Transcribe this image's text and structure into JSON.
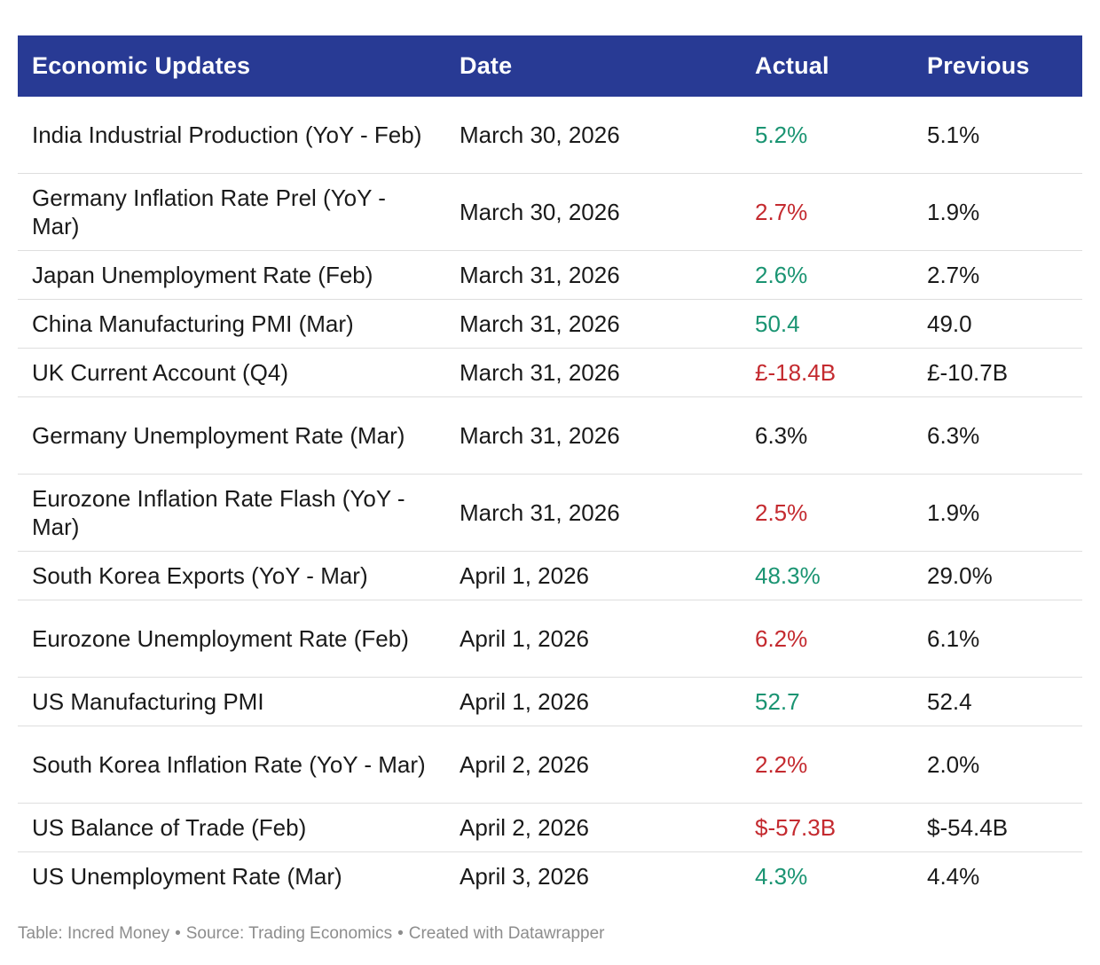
{
  "chart_data": {
    "type": "table",
    "headers": {
      "event": "Economic Updates",
      "date": "Date",
      "actual": "Actual",
      "previous": "Previous"
    },
    "rows": [
      {
        "event": "India Industrial Production (YoY - Feb)",
        "date": "March 30, 2026",
        "actual": "5.2%",
        "actual_trend": "positive",
        "previous": "5.1%"
      },
      {
        "event": "Germany Inflation Rate Prel (YoY - Mar)",
        "date": "March 30, 2026",
        "actual": "2.7%",
        "actual_trend": "negative",
        "previous": "1.9%"
      },
      {
        "event": "Japan Unemployment Rate (Feb)",
        "date": "March 31, 2026",
        "actual": "2.6%",
        "actual_trend": "positive",
        "previous": "2.7%"
      },
      {
        "event": "China Manufacturing PMI (Mar)",
        "date": "March 31, 2026",
        "actual": "50.4",
        "actual_trend": "positive",
        "previous": "49.0"
      },
      {
        "event": "UK Current Account (Q4)",
        "date": "March 31, 2026",
        "actual": "£-18.4B",
        "actual_trend": "negative",
        "previous": "£-10.7B"
      },
      {
        "event": "Germany Unemployment Rate (Mar)",
        "date": "March 31, 2026",
        "actual": "6.3%",
        "actual_trend": "neutral",
        "previous": "6.3%"
      },
      {
        "event": "Eurozone Inflation Rate Flash (YoY - Mar)",
        "date": "March 31, 2026",
        "actual": "2.5%",
        "actual_trend": "negative",
        "previous": "1.9%"
      },
      {
        "event": "South Korea Exports (YoY - Mar)",
        "date": "April 1, 2026",
        "actual": "48.3%",
        "actual_trend": "positive",
        "previous": "29.0%"
      },
      {
        "event": "Eurozone Unemployment Rate (Feb)",
        "date": "April 1, 2026",
        "actual": "6.2%",
        "actual_trend": "negative",
        "previous": "6.1%"
      },
      {
        "event": "US Manufacturing PMI",
        "date": "April 1, 2026",
        "actual": "52.7",
        "actual_trend": "positive",
        "previous": "52.4"
      },
      {
        "event": "South Korea Inflation Rate (YoY - Mar)",
        "date": "April 2, 2026",
        "actual": "2.2%",
        "actual_trend": "negative",
        "previous": "2.0%"
      },
      {
        "event": "US Balance of Trade (Feb)",
        "date": "April 2, 2026",
        "actual": "$-57.3B",
        "actual_trend": "negative",
        "previous": "$-54.4B"
      },
      {
        "event": "US Unemployment Rate (Mar)",
        "date": "April 3, 2026",
        "actual": "4.3%",
        "actual_trend": "positive",
        "previous": "4.4%"
      }
    ]
  },
  "footer": {
    "table_credit": "Table: Incred Money",
    "source": "Source: Trading Economics",
    "created_with": "Created with Datawrapper",
    "separator": "•"
  },
  "colors": {
    "header_bg": "#283a94",
    "header_text": "#ffffff",
    "positive": "#1a9472",
    "negative": "#c42a2f",
    "neutral": "#1a1a1a",
    "row_divider": "#dedede",
    "footer_text": "#8d8d8d"
  }
}
